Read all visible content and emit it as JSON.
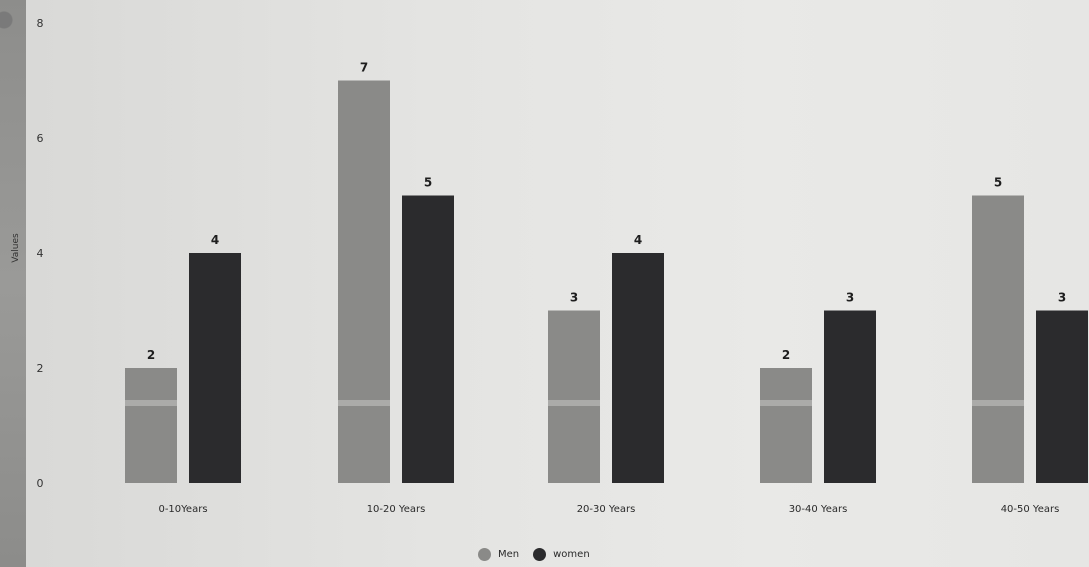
{
  "chart_data": {
    "type": "bar",
    "categories": [
      "0-10Years",
      "10-20 Years",
      "20-30 Years",
      "30-40 Years",
      "40-50 Years"
    ],
    "series": [
      {
        "name": "Men",
        "values": [
          2,
          7,
          3,
          2,
          5
        ],
        "color": "#8a8a88"
      },
      {
        "name": "women",
        "values": [
          4,
          5,
          4,
          3,
          3
        ],
        "color": "#2b2b2d"
      }
    ],
    "data_labels": {
      "Men": [
        "2",
        "7",
        "3",
        "2",
        "5"
      ],
      "women": [
        "4",
        "5",
        "4",
        "3",
        "3"
      ]
    },
    "ylabel": "Values",
    "yticks": [
      "0",
      "2",
      "4",
      "6",
      "8"
    ],
    "ylim": [
      0,
      8
    ],
    "grid": false,
    "legend_position": "bottom-center"
  }
}
